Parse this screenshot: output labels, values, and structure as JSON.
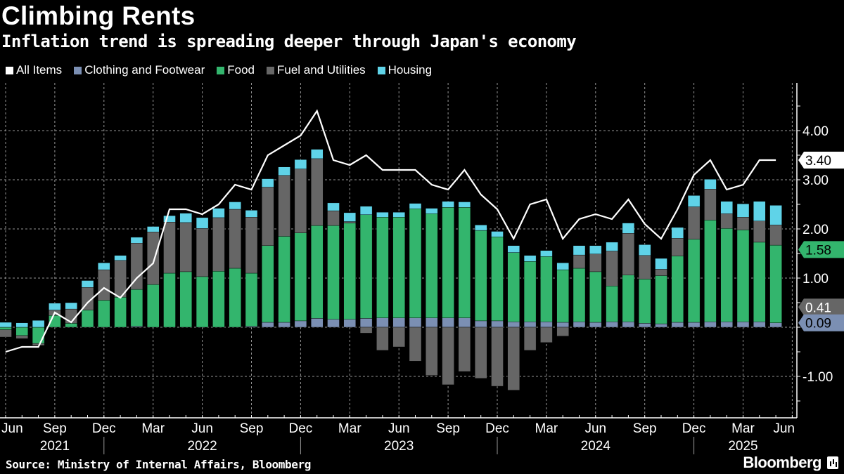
{
  "chart_data": {
    "type": "bar",
    "stacked": true,
    "title": "Climbing Rents",
    "subtitle": "Inflation trend is spreading deeper through Japan's economy",
    "source": "Source: Ministry of Internal Affairs, Bloomberg",
    "logo": "Bloomberg",
    "categories": [
      "Jun 2021",
      "Jul 2021",
      "Aug 2021",
      "Sep 2021",
      "Oct 2021",
      "Nov 2021",
      "Dec 2021",
      "Jan 2022",
      "Feb 2022",
      "Mar 2022",
      "Apr 2022",
      "May 2022",
      "Jun 2022",
      "Jul 2022",
      "Aug 2022",
      "Sep 2022",
      "Oct 2022",
      "Nov 2022",
      "Dec 2022",
      "Jan 2023",
      "Feb 2023",
      "Mar 2023",
      "Apr 2023",
      "May 2023",
      "Jun 2023",
      "Jul 2023",
      "Aug 2023",
      "Sep 2023",
      "Oct 2023",
      "Nov 2023",
      "Dec 2023",
      "Jan 2024",
      "Feb 2024",
      "Mar 2024",
      "Apr 2024",
      "May 2024",
      "Jun 2024",
      "Jul 2024",
      "Aug 2024",
      "Sep 2024",
      "Oct 2024",
      "Nov 2024",
      "Dec 2024",
      "Jan 2025",
      "Feb 2025",
      "Mar 2025",
      "Apr 2025",
      "May 2025"
    ],
    "series": [
      {
        "name": "Clothing and Footwear",
        "kind": "bar",
        "color": "#7b8fb3",
        "values": [
          0,
          0,
          0,
          0,
          0,
          0,
          0,
          0,
          0.02,
          0,
          0,
          0,
          0,
          0,
          0,
          0.02,
          0.1,
          0.1,
          0.13,
          0.18,
          0.16,
          0.16,
          0.18,
          0.19,
          0.19,
          0.19,
          0.19,
          0.19,
          0.19,
          0.13,
          0.13,
          0.11,
          0.11,
          0.11,
          0.1,
          0.11,
          0.1,
          0.11,
          0.11,
          0.08,
          0.07,
          0.1,
          0.1,
          0.11,
          0.11,
          0.11,
          0.11,
          0.09
        ]
      },
      {
        "name": "Food",
        "kind": "bar",
        "color": "#33b56d",
        "values": [
          -0.05,
          -0.17,
          -0.33,
          0.24,
          0.08,
          0.35,
          0.55,
          0.61,
          0.75,
          0.87,
          1.1,
          1.13,
          1.03,
          1.14,
          1.2,
          1.08,
          1.56,
          1.75,
          1.79,
          1.89,
          1.91,
          1.96,
          2.11,
          2.05,
          2.05,
          2.22,
          2.12,
          2.25,
          2.25,
          1.84,
          1.71,
          1.41,
          1.23,
          1.33,
          1.07,
          1.09,
          1.03,
          0.73,
          0.95,
          0.9,
          0.98,
          1.35,
          1.69,
          2.07,
          1.9,
          1.87,
          1.62,
          1.58
        ]
      },
      {
        "name": "Fuel and Utilities",
        "kind": "bar",
        "color": "#666666",
        "values": [
          -0.15,
          -0.06,
          -0.04,
          0.11,
          0.29,
          0.46,
          0.62,
          0.75,
          0.94,
          1.07,
          1.04,
          1.0,
          0.98,
          1.09,
          1.2,
          1.14,
          1.19,
          1.24,
          1.3,
          1.36,
          0.3,
          0.03,
          -0.12,
          -0.47,
          -0.4,
          -0.69,
          -0.98,
          -1.17,
          -0.9,
          -1.04,
          -1.2,
          -1.28,
          -0.47,
          -0.31,
          -0.18,
          0.27,
          0.36,
          0.71,
          0.85,
          0.48,
          0.13,
          0.36,
          0.66,
          0.63,
          0.3,
          0.26,
          0.43,
          0.41
        ]
      },
      {
        "name": "Housing",
        "kind": "bar",
        "color": "#5fd3e8",
        "values": [
          0.1,
          0.09,
          0.14,
          0.14,
          0.13,
          0.14,
          0.14,
          0.1,
          0.12,
          0.11,
          0.13,
          0.19,
          0.22,
          0.19,
          0.15,
          0.14,
          0.17,
          0.17,
          0.19,
          0.19,
          0.16,
          0.18,
          0.17,
          0.1,
          0.1,
          0.11,
          0.11,
          0.12,
          0.11,
          0.11,
          0.11,
          0.14,
          0.12,
          0.12,
          0.14,
          0.19,
          0.17,
          0.18,
          0.21,
          0.22,
          0.22,
          0.22,
          0.23,
          0.2,
          0.25,
          0.27,
          0.4,
          0.4
        ]
      },
      {
        "name": "All Items",
        "kind": "line",
        "color": "#ffffff",
        "values": [
          -0.5,
          -0.4,
          -0.4,
          0.3,
          0.1,
          0.5,
          0.8,
          0.6,
          1.0,
          1.3,
          2.4,
          2.4,
          2.3,
          2.5,
          2.9,
          2.8,
          3.5,
          3.7,
          3.9,
          4.4,
          3.4,
          3.3,
          3.5,
          3.2,
          3.2,
          3.2,
          2.9,
          2.8,
          3.2,
          2.7,
          2.4,
          1.8,
          2.5,
          2.6,
          1.8,
          2.2,
          2.3,
          2.2,
          2.6,
          2.1,
          1.8,
          2.4,
          3.1,
          3.4,
          2.8,
          2.9,
          3.4,
          3.4
        ]
      }
    ],
    "legend": {
      "placement": "top-left",
      "order": [
        "All Items",
        "Clothing and Footwear",
        "Food",
        "Fuel and Utilities",
        "Housing"
      ]
    },
    "ylim": [
      -1.75,
      4.9
    ],
    "y_axis_side": "right",
    "y_ticks": [
      {
        "value": 4,
        "label": "4.00"
      },
      {
        "value": 3,
        "label": "3.00"
      },
      {
        "value": 2,
        "label": "2.00"
      },
      {
        "value": 1,
        "label": "1.00"
      },
      {
        "value": -1,
        "label": "-1.00"
      }
    ],
    "x_ticks": [
      {
        "at": "Jun 2021",
        "label": "Jun"
      },
      {
        "at": "Sep 2021",
        "label": "Sep"
      },
      {
        "at": "Dec 2021",
        "label": "Dec"
      },
      {
        "at": "Mar 2022",
        "label": "Mar"
      },
      {
        "at": "Jun 2022",
        "label": "Jun"
      },
      {
        "at": "Sep 2022",
        "label": "Sep"
      },
      {
        "at": "Dec 2022",
        "label": "Dec"
      },
      {
        "at": "Mar 2023",
        "label": "Mar"
      },
      {
        "at": "Jun 2023",
        "label": "Jun"
      },
      {
        "at": "Sep 2023",
        "label": "Sep"
      },
      {
        "at": "Dec 2023",
        "label": "Dec"
      },
      {
        "at": "Mar 2024",
        "label": "Mar"
      },
      {
        "at": "Jun 2024",
        "label": "Jun"
      },
      {
        "at": "Sep 2024",
        "label": "Sep"
      },
      {
        "at": "Dec 2024",
        "label": "Dec"
      },
      {
        "at": "Mar 2025",
        "label": "Mar"
      },
      {
        "at": "Jun 2025",
        "label": "Jun"
      }
    ],
    "year_labels": [
      {
        "at": "Sep 2021",
        "label": "2021"
      },
      {
        "at": "Jun 2022",
        "label": "2022"
      },
      {
        "at": "Jun 2023",
        "label": "2023"
      },
      {
        "at": "Jun 2024",
        "label": "2024"
      },
      {
        "at": "Mar 2025",
        "label": "2025"
      }
    ],
    "end_labels": [
      {
        "series": "All Items",
        "value": 3.4,
        "label": "3.40",
        "bg": "#ffffff",
        "fg": "#000000"
      },
      {
        "series": "Food",
        "value": 1.58,
        "label": "1.58",
        "bg": "#33b56d",
        "fg": "#000000"
      },
      {
        "series": "Fuel and Utilities",
        "value": 0.41,
        "label": "0.41",
        "bg": "#666666",
        "fg": "#ffffff"
      },
      {
        "series": "Clothing and Footwear",
        "value": 0.09,
        "label": "0.09",
        "bg": "#7b8fb3",
        "fg": "#000000"
      }
    ],
    "grid": true
  }
}
